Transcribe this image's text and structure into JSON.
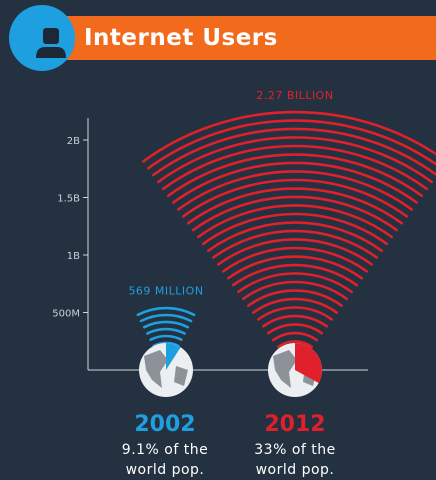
{
  "header": {
    "title": "Internet Users",
    "icon": "user-icon",
    "colors": {
      "bar": "#f26a1b",
      "icon_circle": "#1e9fe0"
    }
  },
  "chart_data": {
    "type": "bar",
    "categories": [
      "2002",
      "2012"
    ],
    "values": [
      569000000,
      2270000000
    ],
    "data_labels": [
      "569 MILLION",
      "2.27 BILLION"
    ],
    "ylim": [
      0,
      2200000000
    ],
    "yticks": [
      500000000,
      1000000000,
      1500000000,
      2000000000
    ],
    "ytick_labels": [
      "500M",
      "1B",
      "1.5B",
      "2B"
    ],
    "share_of_world_population": [
      0.091,
      0.33
    ],
    "colors": [
      "#1e9fe0",
      "#e0202a"
    ],
    "grid": false,
    "title": "",
    "xlabel": "",
    "ylabel": ""
  },
  "years": [
    {
      "label": "2002",
      "caption_line1": "9.1% of the",
      "caption_line2": "world pop."
    },
    {
      "label": "2012",
      "caption_line1": "33% of the",
      "caption_line2": "world pop."
    }
  ]
}
